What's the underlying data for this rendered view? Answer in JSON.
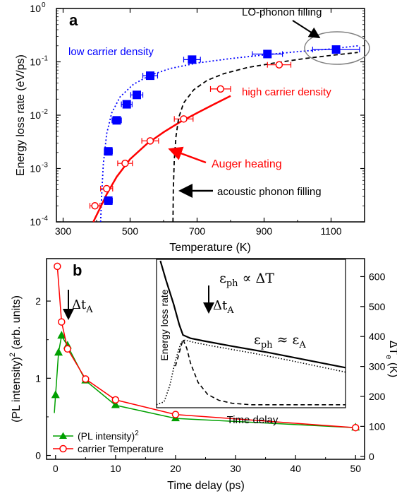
{
  "chart_data": [
    {
      "panel": "a",
      "type": "scatter",
      "xlabel": "Temperature (K)",
      "ylabel": "Energy loss rate (eV/ps)",
      "xlim": [
        280,
        1200
      ],
      "ylim": [
        0.0001,
        1
      ],
      "yscale": "log",
      "xticks": [
        300,
        500,
        700,
        900,
        1100
      ],
      "xtick_labels": [
        "300",
        "500",
        "700",
        "900",
        "1100"
      ],
      "yticks": [
        0.0001,
        0.001,
        0.01,
        0.1,
        1
      ],
      "ytick_labels": [
        [
          "10",
          "-4"
        ],
        [
          "10",
          "-3"
        ],
        [
          "10",
          "-2"
        ],
        [
          "10",
          "-1"
        ],
        [
          "10",
          "0"
        ]
      ],
      "series": [
        {
          "name": "low carrier density",
          "color": "#0000ff",
          "marker": "filled-square",
          "points": [
            {
              "x": 435,
              "y": 0.00025,
              "xerr": 12
            },
            {
              "x": 435,
              "y": 0.0021,
              "xerr": 12
            },
            {
              "x": 460,
              "y": 0.008,
              "xerr": 14
            },
            {
              "x": 490,
              "y": 0.016,
              "xerr": 16
            },
            {
              "x": 520,
              "y": 0.024,
              "xerr": 18
            },
            {
              "x": 560,
              "y": 0.055,
              "xerr": 22
            },
            {
              "x": 685,
              "y": 0.11,
              "xerr": 25
            },
            {
              "x": 910,
              "y": 0.14,
              "xerr": 45
            },
            {
              "x": 1115,
              "y": 0.17,
              "xerr": 70
            }
          ]
        },
        {
          "name": "high carrier density",
          "color": "#ff0000",
          "marker": "open-circle",
          "points": [
            {
              "x": 395,
              "y": 0.0002,
              "xerr": 15
            },
            {
              "x": 430,
              "y": 0.00042,
              "xerr": 18
            },
            {
              "x": 485,
              "y": 0.00125,
              "xerr": 22
            },
            {
              "x": 560,
              "y": 0.0033,
              "xerr": 25
            },
            {
              "x": 660,
              "y": 0.0085,
              "xerr": 28
            },
            {
              "x": 770,
              "y": 0.031,
              "xerr": 30
            },
            {
              "x": 945,
              "y": 0.088,
              "xerr": 35
            }
          ]
        }
      ],
      "curves": [
        {
          "style": "dotted",
          "color": "#0000ff",
          "x": [
            412,
            415,
            420,
            430,
            445,
            470,
            510,
            560,
            620,
            700,
            800,
            900,
            1000,
            1100,
            1180
          ],
          "y": [
            9e-05,
            0.0003,
            0.0012,
            0.0045,
            0.011,
            0.022,
            0.038,
            0.056,
            0.075,
            0.095,
            0.115,
            0.135,
            0.155,
            0.175,
            0.2
          ]
        },
        {
          "style": "solid",
          "color": "#ff0000",
          "x": [
            390,
            410,
            430,
            460,
            500,
            550,
            600,
            650,
            700,
            750,
            800
          ],
          "y": [
            9e-05,
            0.00018,
            0.00033,
            0.0007,
            0.0015,
            0.0029,
            0.0048,
            0.0075,
            0.011,
            0.016,
            0.023
          ]
        },
        {
          "style": "dashed",
          "color": "#000000",
          "x": [
            628,
            629,
            632,
            637,
            645,
            660,
            690,
            730,
            780,
            850,
            930,
            1020,
            1100,
            1180
          ],
          "y": [
            9e-05,
            0.0004,
            0.0015,
            0.004,
            0.009,
            0.017,
            0.03,
            0.045,
            0.06,
            0.078,
            0.095,
            0.115,
            0.132,
            0.15
          ]
        }
      ],
      "annotations": [
        "a",
        "LO-phonon filling",
        "low carrier density",
        "high carrier density",
        "Auger heating",
        "acoustic phonon filling"
      ]
    },
    {
      "panel": "b",
      "type": "line",
      "xlabel": "Time delay (ps)",
      "ylabel": "(PL intensity)",
      "ylabel_superscript": "2",
      "ylabel_suffix": " (arb. units)",
      "y2label": "ΔT",
      "y2label_subscript": "e",
      "y2label_suffix": " (K)",
      "xlim": [
        -1.5,
        51.5
      ],
      "ylim": [
        -0.05,
        2.55
      ],
      "y2lim": [
        -10,
        660
      ],
      "xticks": [
        0,
        10,
        20,
        30,
        40,
        50
      ],
      "yticks": [
        0,
        1,
        2
      ],
      "y2ticks": [
        0,
        100,
        200,
        300,
        400,
        500,
        600
      ],
      "series": [
        {
          "name": "(PL intensity)",
          "name_superscript": "2",
          "color": "#00a000",
          "marker": "filled-triangle",
          "x": [
            0,
            0.5,
            1,
            2,
            5,
            10,
            20,
            50
          ],
          "y": [
            0.78,
            1.33,
            1.55,
            1.42,
            0.97,
            0.65,
            0.48,
            0.36
          ]
        },
        {
          "name": "carrier Temperature",
          "color": "#ff0000",
          "marker": "open-circle",
          "x": [
            0.3,
            1,
            2,
            5,
            10,
            20,
            50
          ],
          "y": [
            2.45,
            1.73,
            1.38,
            0.99,
            0.72,
            0.53,
            0.36
          ]
        }
      ],
      "green_lead_in": {
        "x": [
          -0.2,
          0
        ],
        "y": [
          0.55,
          0.78
        ]
      },
      "annotations": [
        "b",
        "Δt",
        "A"
      ],
      "inset": {
        "ylabel": "Energy loss rate",
        "xlabel": "Time delay",
        "eq1": [
          "ε",
          "ph",
          " ∝ ΔT"
        ],
        "eq2": [
          "ε",
          "ph",
          " ≈ ε",
          "A"
        ],
        "marker_label": [
          "Δt",
          "A"
        ],
        "curves": [
          {
            "style": "solid",
            "t": [
              0.02,
              0.05,
              0.09,
              0.12,
              0.14,
              0.18,
              0.25,
              0.4,
              0.6,
              0.8,
              1.0
            ],
            "v": [
              0.99,
              0.86,
              0.7,
              0.56,
              0.49,
              0.468,
              0.45,
              0.415,
              0.37,
              0.32,
              0.27
            ]
          },
          {
            "style": "dotted",
            "t": [
              0.0,
              0.04,
              0.07,
              0.1,
              0.13,
              0.15,
              0.2,
              0.3,
              0.5,
              0.7,
              1.0
            ],
            "v": [
              0.02,
              0.04,
              0.15,
              0.32,
              0.44,
              0.455,
              0.44,
              0.415,
              0.37,
              0.32,
              0.24
            ]
          },
          {
            "style": "dashed",
            "t": [
              0.1,
              0.12,
              0.14,
              0.16,
              0.18,
              0.22,
              0.27,
              0.33,
              0.4,
              0.5,
              1.0
            ],
            "v": [
              0.28,
              0.37,
              0.46,
              0.4,
              0.3,
              0.17,
              0.09,
              0.05,
              0.03,
              0.02,
              0.02
            ]
          }
        ]
      }
    }
  ]
}
